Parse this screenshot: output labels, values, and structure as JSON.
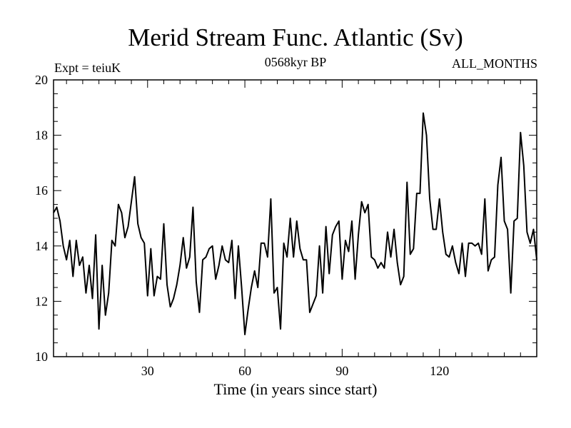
{
  "chart_data": {
    "type": "line",
    "title": "Merid Stream Func. Atlantic (Sv)",
    "subtitle_left": "Expt = teiuK",
    "subtitle_center": "0568kyr BP",
    "subtitle_right": "ALL_MONTHS",
    "xlabel": "Time (in years since start)",
    "ylabel": "",
    "xlim": [
      1,
      150
    ],
    "ylim": [
      10,
      20
    ],
    "xticks": [
      30,
      60,
      90,
      120
    ],
    "yticks": [
      10,
      12,
      14,
      16,
      18,
      20
    ],
    "grid": false,
    "series": [
      {
        "name": "Merid Stream Func. Atlantic",
        "x": [
          1,
          2,
          3,
          4,
          5,
          6,
          7,
          8,
          9,
          10,
          11,
          12,
          13,
          14,
          15,
          16,
          17,
          18,
          19,
          20,
          21,
          22,
          23,
          24,
          25,
          26,
          27,
          28,
          29,
          30,
          31,
          32,
          33,
          34,
          35,
          36,
          37,
          38,
          39,
          40,
          41,
          42,
          43,
          44,
          45,
          46,
          47,
          48,
          49,
          50,
          51,
          52,
          53,
          54,
          55,
          56,
          57,
          58,
          59,
          60,
          61,
          62,
          63,
          64,
          65,
          66,
          67,
          68,
          69,
          70,
          71,
          72,
          73,
          74,
          75,
          76,
          77,
          78,
          79,
          80,
          81,
          82,
          83,
          84,
          85,
          86,
          87,
          88,
          89,
          90,
          91,
          92,
          93,
          94,
          95,
          96,
          97,
          98,
          99,
          100,
          101,
          102,
          103,
          104,
          105,
          106,
          107,
          108,
          109,
          110,
          111,
          112,
          113,
          114,
          115,
          116,
          117,
          118,
          119,
          120,
          121,
          122,
          123,
          124,
          125,
          126,
          127,
          128,
          129,
          130,
          131,
          132,
          133,
          134,
          135,
          136,
          137,
          138,
          139,
          140,
          141,
          142,
          143,
          144,
          145,
          146,
          147,
          148,
          149,
          150
        ],
        "values": [
          15.2,
          15.4,
          14.9,
          14.0,
          13.5,
          14.2,
          12.9,
          14.2,
          13.3,
          13.6,
          12.3,
          13.3,
          12.1,
          14.4,
          11.0,
          13.3,
          11.5,
          12.3,
          14.2,
          14.0,
          15.5,
          15.2,
          14.3,
          14.7,
          15.6,
          16.5,
          14.8,
          14.3,
          14.1,
          12.2,
          13.9,
          12.2,
          12.9,
          12.8,
          14.8,
          12.6,
          11.8,
          12.1,
          12.6,
          13.3,
          14.3,
          13.2,
          13.6,
          15.4,
          12.7,
          11.6,
          13.5,
          13.6,
          13.9,
          14.0,
          12.8,
          13.3,
          14.0,
          13.5,
          13.4,
          14.2,
          12.1,
          14.0,
          12.5,
          10.8,
          11.7,
          12.5,
          13.1,
          12.5,
          14.1,
          14.1,
          13.6,
          15.7,
          12.3,
          12.5,
          11.0,
          14.1,
          13.6,
          15.0,
          13.6,
          14.9,
          13.9,
          13.5,
          13.5,
          11.6,
          11.9,
          12.2,
          14.0,
          12.3,
          14.7,
          13.0,
          14.4,
          14.7,
          14.9,
          12.8,
          14.2,
          13.8,
          14.9,
          12.8,
          14.4,
          15.6,
          15.2,
          15.5,
          13.6,
          13.5,
          13.2,
          13.4,
          13.2,
          14.5,
          13.6,
          14.6,
          13.4,
          12.6,
          12.9,
          16.3,
          13.7,
          13.9,
          15.9,
          15.9,
          18.8,
          18.0,
          15.7,
          14.6,
          14.6,
          15.7,
          14.5,
          13.7,
          13.6,
          14.0,
          13.4,
          13.0,
          14.1,
          12.9,
          14.1,
          14.1,
          14.0,
          14.1,
          13.7,
          15.7,
          13.1,
          13.5,
          13.6,
          16.2,
          17.2,
          14.9,
          14.6,
          12.3,
          14.9,
          15.0,
          18.1,
          16.9,
          14.5,
          14.1,
          14.6,
          13.5
        ]
      }
    ]
  }
}
